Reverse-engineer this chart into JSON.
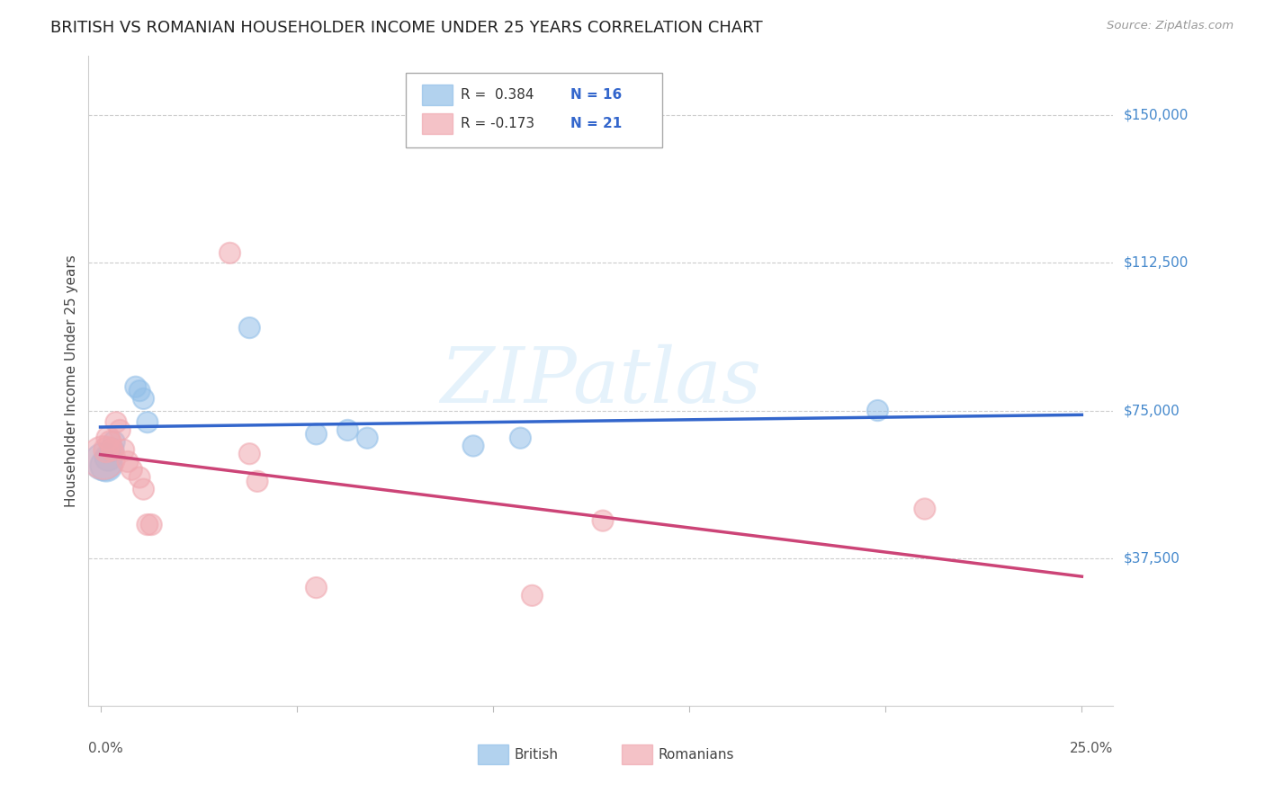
{
  "title": "BRITISH VS ROMANIAN HOUSEHOLDER INCOME UNDER 25 YEARS CORRELATION CHART",
  "source": "Source: ZipAtlas.com",
  "ylabel": "Householder Income Under 25 years",
  "y_ticks": [
    37500,
    75000,
    112500,
    150000
  ],
  "y_tick_labels": [
    "$37,500",
    "$75,000",
    "$112,500",
    "$150,000"
  ],
  "x_range": [
    0.0,
    0.25
  ],
  "y_range": [
    0,
    165000
  ],
  "watermark": "ZIPatlas",
  "legend_british_r": "R =  0.384",
  "legend_british_n": "N = 16",
  "legend_romanian_r": "R = -0.173",
  "legend_romanian_n": "N = 21",
  "british_color": "#92bfe8",
  "romanian_color": "#f0a8b0",
  "british_line_color": "#3366cc",
  "romanian_line_color": "#cc4477",
  "background_color": "#ffffff",
  "british_points": [
    [
      0.0008,
      62000,
      900
    ],
    [
      0.0015,
      61000,
      650
    ],
    [
      0.002,
      63000,
      450
    ],
    [
      0.003,
      65000,
      350
    ],
    [
      0.0035,
      67000,
      300
    ],
    [
      0.009,
      81000,
      280
    ],
    [
      0.01,
      80000,
      280
    ],
    [
      0.011,
      78000,
      280
    ],
    [
      0.012,
      72000,
      280
    ],
    [
      0.038,
      96000,
      280
    ],
    [
      0.055,
      69000,
      280
    ],
    [
      0.063,
      70000,
      280
    ],
    [
      0.068,
      68000,
      280
    ],
    [
      0.095,
      66000,
      280
    ],
    [
      0.107,
      68000,
      280
    ],
    [
      0.198,
      75000,
      280
    ]
  ],
  "romanian_points": [
    [
      0.0008,
      63000,
      1200
    ],
    [
      0.0015,
      65000,
      400
    ],
    [
      0.002,
      68000,
      350
    ],
    [
      0.0025,
      67000,
      320
    ],
    [
      0.003,
      65000,
      300
    ],
    [
      0.004,
      72000,
      280
    ],
    [
      0.005,
      70000,
      280
    ],
    [
      0.006,
      65000,
      280
    ],
    [
      0.007,
      62000,
      280
    ],
    [
      0.008,
      60000,
      280
    ],
    [
      0.01,
      58000,
      280
    ],
    [
      0.011,
      55000,
      280
    ],
    [
      0.012,
      46000,
      280
    ],
    [
      0.013,
      46000,
      280
    ],
    [
      0.033,
      115000,
      280
    ],
    [
      0.038,
      64000,
      280
    ],
    [
      0.04,
      57000,
      280
    ],
    [
      0.055,
      30000,
      280
    ],
    [
      0.11,
      28000,
      280
    ],
    [
      0.128,
      47000,
      280
    ],
    [
      0.21,
      50000,
      280
    ]
  ]
}
